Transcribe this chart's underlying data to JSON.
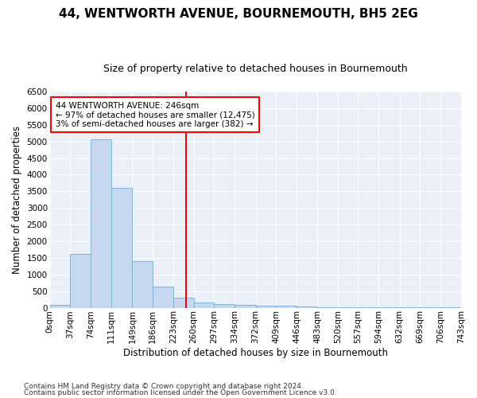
{
  "title": "44, WENTWORTH AVENUE, BOURNEMOUTH, BH5 2EG",
  "subtitle": "Size of property relative to detached houses in Bournemouth",
  "xlabel": "Distribution of detached houses by size in Bournemouth",
  "ylabel": "Number of detached properties",
  "bin_edges": [
    0,
    37,
    74,
    111,
    149,
    186,
    223,
    260,
    297,
    334,
    372,
    409,
    446,
    483,
    520,
    557,
    594,
    632,
    669,
    706,
    743
  ],
  "bar_heights": [
    75,
    1625,
    5075,
    3600,
    1400,
    625,
    290,
    150,
    110,
    75,
    60,
    50,
    30,
    20,
    15,
    10,
    5,
    5,
    5,
    5
  ],
  "bar_color": "#c5d8f0",
  "bar_edgecolor": "#7aadd4",
  "vline_x": 246,
  "vline_color": "red",
  "annotation_title": "44 WENTWORTH AVENUE: 246sqm",
  "annotation_line1": "← 97% of detached houses are smaller (12,475)",
  "annotation_line2": "3% of semi-detached houses are larger (382) →",
  "annotation_box_color": "red",
  "ylim": [
    0,
    6500
  ],
  "xlim": [
    0,
    743
  ],
  "tick_labels": [
    "0sqm",
    "37sqm",
    "74sqm",
    "111sqm",
    "149sqm",
    "186sqm",
    "223sqm",
    "260sqm",
    "297sqm",
    "334sqm",
    "372sqm",
    "409sqm",
    "446sqm",
    "483sqm",
    "520sqm",
    "557sqm",
    "594sqm",
    "632sqm",
    "669sqm",
    "706sqm",
    "743sqm"
  ],
  "footnote1": "Contains HM Land Registry data © Crown copyright and database right 2024.",
  "footnote2": "Contains public sector information licensed under the Open Government Licence v3.0.",
  "plot_bg_color": "#eaeff8",
  "title_fontsize": 11,
  "subtitle_fontsize": 9,
  "axis_label_fontsize": 8.5,
  "tick_fontsize": 7.5,
  "annot_fontsize": 7.5,
  "footnote_fontsize": 6.5
}
